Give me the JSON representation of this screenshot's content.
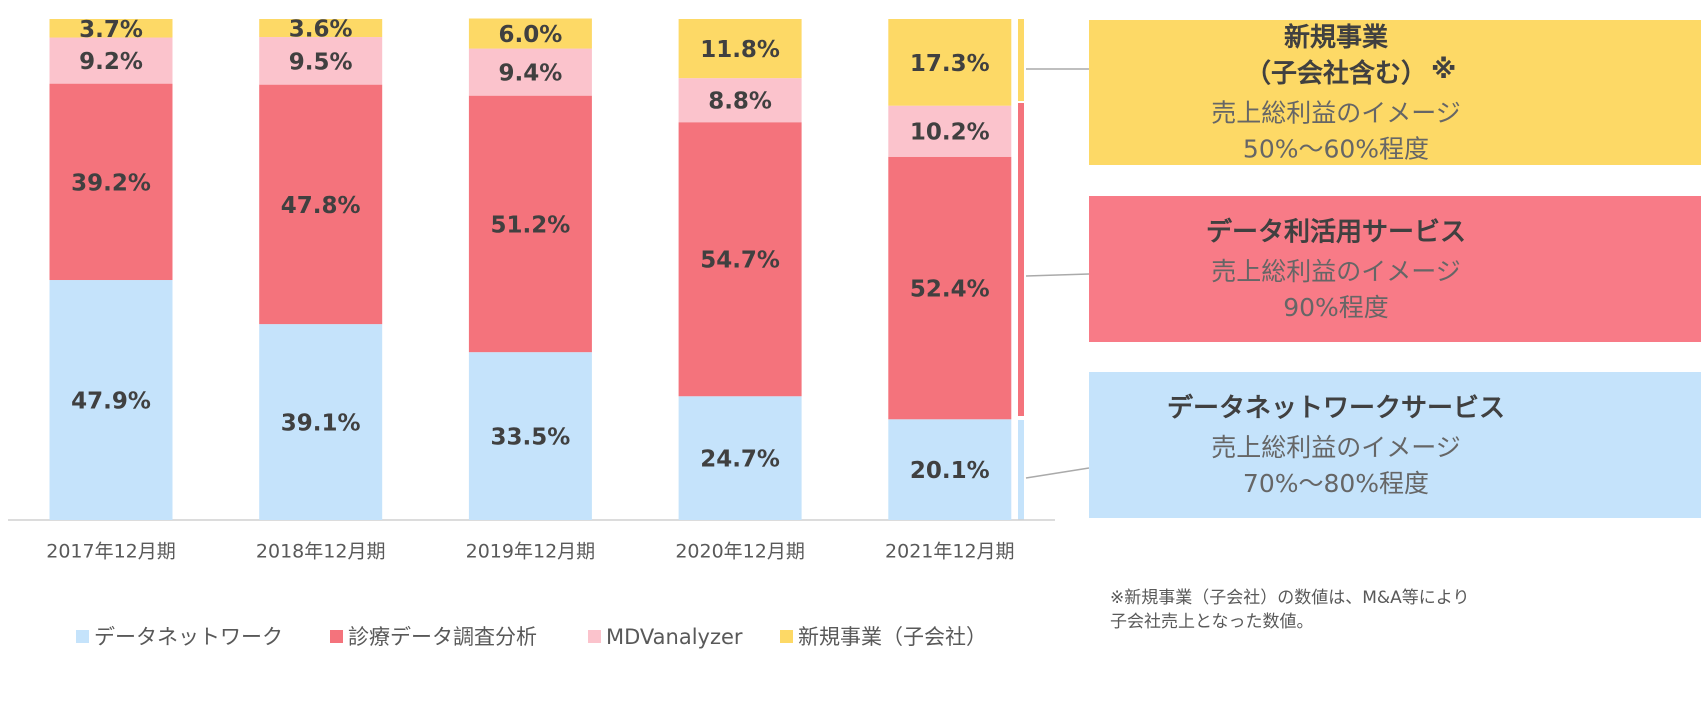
{
  "chart_data": {
    "type": "stacked-bar",
    "categories": [
      "2017年12月期",
      "2018年12月期",
      "2019年12月期",
      "2020年12月期",
      "2021年12月期"
    ],
    "series": [
      {
        "name": "データネットワーク",
        "color": "#c5e3fb",
        "values": [
          47.9,
          39.1,
          33.5,
          24.7,
          20.1
        ],
        "value_labels": [
          "47.9%",
          "39.1%",
          "33.5%",
          "24.7%",
          "20.1%"
        ]
      },
      {
        "name": "診療データ調査分析",
        "color": "#f4737c",
        "values": [
          39.2,
          47.8,
          51.2,
          54.7,
          52.4
        ],
        "value_labels": [
          "39.2%",
          "47.8%",
          "51.2%",
          "54.7%",
          "52.4%"
        ]
      },
      {
        "name": "MDVanalyzer",
        "color": "#fbc3cc",
        "values": [
          9.2,
          9.5,
          9.4,
          8.8,
          10.2
        ],
        "value_labels": [
          "9.2%",
          "9.5%",
          "9.4%",
          "8.8%",
          "10.2%"
        ]
      },
      {
        "name": "新規事業（子会社）",
        "color": "#fdd966",
        "values": [
          3.7,
          3.6,
          6.0,
          11.8,
          17.3
        ],
        "value_labels": [
          "3.7%",
          "3.6%",
          "6.0%",
          "11.8%",
          "17.3%"
        ]
      }
    ],
    "ylim": [
      0,
      100
    ],
    "callouts": [
      {
        "title": [
          "新規事業",
          "（子会社含む）"
        ],
        "mark": "※",
        "lines": [
          "売上総利益のイメージ",
          "50%～60%程度"
        ],
        "color": "#fdd966"
      },
      {
        "title": [
          "データ利活用サービス"
        ],
        "lines": [
          "売上総利益のイメージ",
          "90%程度"
        ],
        "color": "#f87b87"
      },
      {
        "title": [
          "データネットワークサービス"
        ],
        "lines": [
          "売上総利益のイメージ",
          "70%～80%程度"
        ],
        "color": "#c5e3fb"
      }
    ],
    "footnote": [
      "※新規事業（子会社）の数値は、M&A等により",
      "子会社売上となった数値。"
    ]
  }
}
